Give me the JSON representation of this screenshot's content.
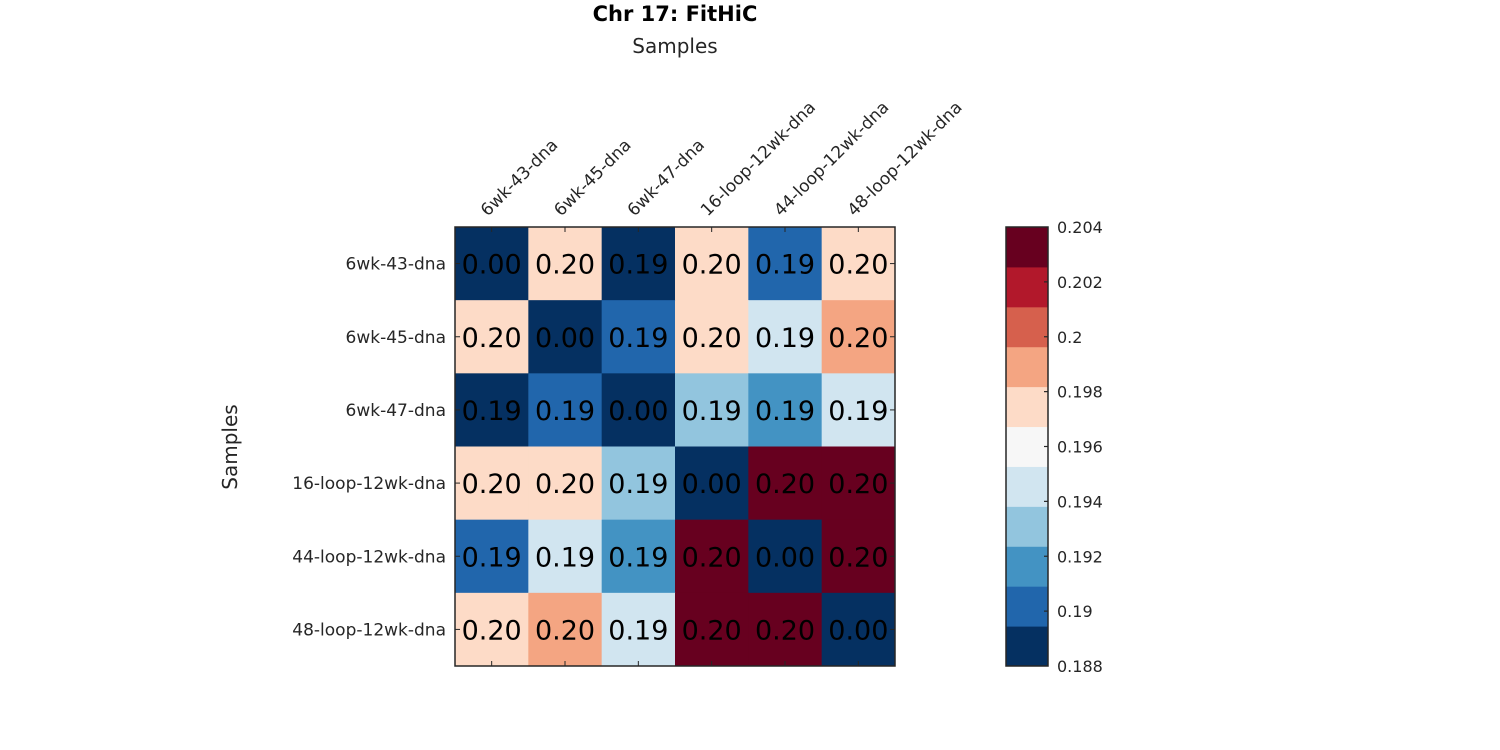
{
  "chart_data": {
    "type": "heatmap",
    "title": "Chr 17: FitHiC",
    "xlabel": "Samples",
    "ylabel": "Samples",
    "x_categories": [
      "6wk-43-dna",
      "6wk-45-dna",
      "6wk-47-dna",
      "16-loop-12wk-dna",
      "44-loop-12wk-dna",
      "48-loop-12wk-dna"
    ],
    "y_categories": [
      "6wk-43-dna",
      "6wk-45-dna",
      "6wk-47-dna",
      "16-loop-12wk-dna",
      "44-loop-12wk-dna",
      "48-loop-12wk-dna"
    ],
    "values": [
      [
        0.0,
        0.1975,
        0.1885,
        0.1975,
        0.1902,
        0.1975
      ],
      [
        0.1975,
        0.0,
        0.1902,
        0.1975,
        0.1945,
        0.199
      ],
      [
        0.1885,
        0.1902,
        0.0,
        0.193,
        0.1916,
        0.1945
      ],
      [
        0.1975,
        0.1975,
        0.193,
        0.0,
        0.204,
        0.204
      ],
      [
        0.1902,
        0.1945,
        0.1916,
        0.204,
        0.0,
        0.204
      ],
      [
        0.1975,
        0.199,
        0.1945,
        0.204,
        0.204,
        0.0
      ]
    ],
    "annotations": [
      [
        "0.00",
        "0.20",
        "0.19",
        "0.20",
        "0.19",
        "0.20"
      ],
      [
        "0.20",
        "0.00",
        "0.19",
        "0.20",
        "0.19",
        "0.20"
      ],
      [
        "0.19",
        "0.19",
        "0.00",
        "0.19",
        "0.19",
        "0.19"
      ],
      [
        "0.20",
        "0.20",
        "0.19",
        "0.00",
        "0.20",
        "0.20"
      ],
      [
        "0.19",
        "0.19",
        "0.19",
        "0.20",
        "0.00",
        "0.20"
      ],
      [
        "0.20",
        "0.20",
        "0.19",
        "0.20",
        "0.20",
        "0.00"
      ]
    ],
    "colorbar": {
      "range": [
        0.188,
        0.204
      ],
      "ticks": [
        0.188,
        0.19,
        0.192,
        0.194,
        0.196,
        0.198,
        0.2,
        0.202,
        0.204
      ],
      "tick_labels": [
        "0.188",
        "0.19",
        "0.192",
        "0.194",
        "0.196",
        "0.198",
        "0.2",
        "0.202",
        "0.204"
      ],
      "colors": [
        "#053061",
        "#2166ac",
        "#4393c3",
        "#92c5de",
        "#d1e5f0",
        "#f7f7f7",
        "#fddbc7",
        "#f4a582",
        "#d6604d",
        "#b2182b",
        "#67001f"
      ],
      "placement": "right"
    },
    "grid": false
  }
}
